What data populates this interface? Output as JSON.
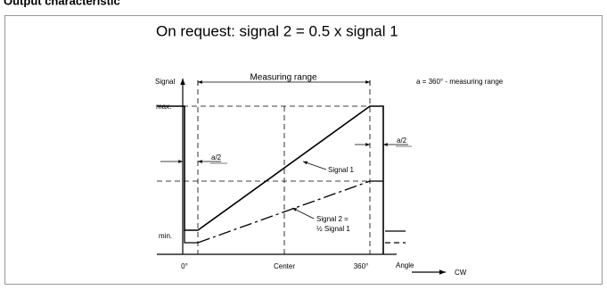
{
  "header": {
    "title": "Output characteristic"
  },
  "diagram": {
    "title": "On request: signal 2 = 0.5 x signal 1",
    "y_axis_label": "Signal",
    "x_axis_label": "Angle",
    "max_label": "max.",
    "min_label": "min.",
    "x_labels": [
      "0°",
      "Center",
      "360°"
    ],
    "measuring_range": "Measuring range",
    "a_definition": "a = 360° -  measuring range",
    "a_half_left": "a/2",
    "a_half_right": "a/2",
    "signal1": "Signal 1",
    "signal2_line1": "Signal 2 =",
    "signal2_line2": "½ Signal 1",
    "direction": "CW"
  }
}
